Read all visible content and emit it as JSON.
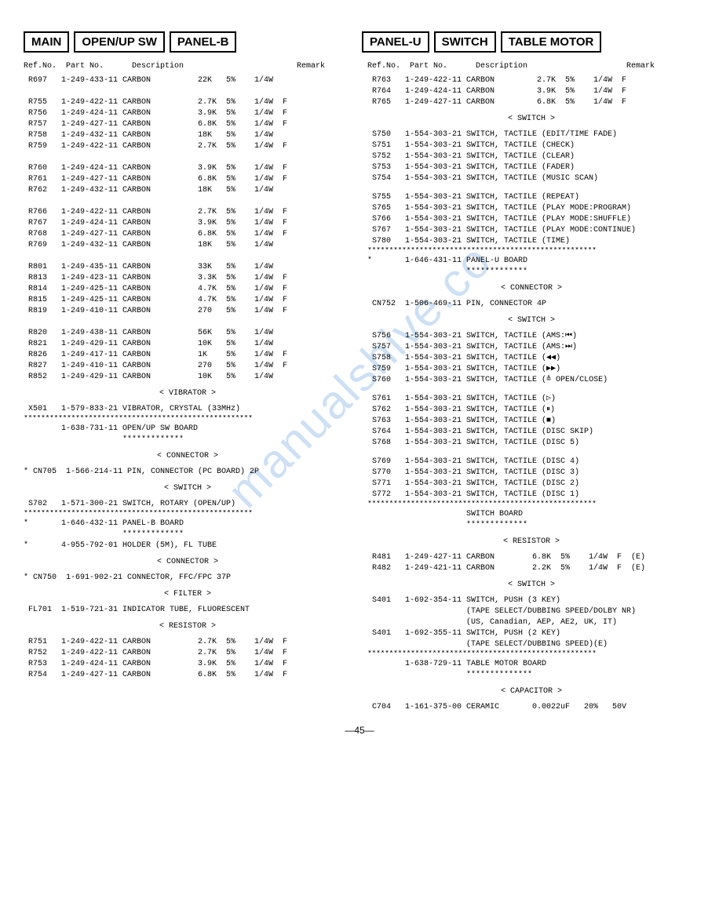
{
  "watermark": "manualshive.co",
  "page_number": "—45—",
  "headers_left": [
    "MAIN",
    "OPEN/UP SW",
    "PANEL-B"
  ],
  "headers_right": [
    "PANEL-U",
    "SWITCH",
    "TABLE MOTOR"
  ],
  "col_header_left": "Ref.No.  Part No.      Description                        Remark",
  "col_header_right": "Ref.No.  Part No.      Description                     Remark",
  "left_rows": [
    " R697   1-249-433-11 CARBON          22K   5%    1/4W",
    "",
    " R755   1-249-422-11 CARBON          2.7K  5%    1/4W  F",
    " R756   1-249-424-11 CARBON          3.9K  5%    1/4W  F",
    " R757   1-249-427-11 CARBON          6.8K  5%    1/4W  F",
    " R758   1-249-432-11 CARBON          18K   5%    1/4W",
    " R759   1-249-422-11 CARBON          2.7K  5%    1/4W  F",
    "",
    " R760   1-249-424-11 CARBON          3.9K  5%    1/4W  F",
    " R761   1-249-427-11 CARBON          6.8K  5%    1/4W  F",
    " R762   1-249-432-11 CARBON          18K   5%    1/4W",
    "",
    " R766   1-249-422-11 CARBON          2.7K  5%    1/4W  F",
    " R767   1-249-424-11 CARBON          3.9K  5%    1/4W  F",
    " R768   1-249-427-11 CARBON          6.8K  5%    1/4W  F",
    " R769   1-249-432-11 CARBON          18K   5%    1/4W",
    "",
    " R801   1-249-435-11 CARBON          33K   5%    1/4W",
    " R813   1-249-423-11 CARBON          3.3K  5%    1/4W  F",
    " R814   1-249-425-11 CARBON          4.7K  5%    1/4W  F",
    " R815   1-249-425-11 CARBON          4.7K  5%    1/4W  F",
    " R819   1-249-410-11 CARBON          270   5%    1/4W  F",
    "",
    " R820   1-249-438-11 CARBON          56K   5%    1/4W",
    " R821   1-249-429-11 CARBON          10K   5%    1/4W",
    " R826   1-249-417-11 CARBON          1K    5%    1/4W  F",
    " R827   1-249-410-11 CARBON          270   5%    1/4W  F",
    " R852   1-249-429-11 CARBON          10K   5%    1/4W"
  ],
  "left_sections": [
    {
      "label": "< VIBRATOR >"
    },
    {
      "text": " X501   1-579-833-21 VIBRATOR, CRYSTAL (33MHz)"
    },
    {
      "sep": true
    },
    {
      "text": "        1-638-731-11 OPEN/UP SW BOARD"
    },
    {
      "stars": "                     *************"
    },
    {
      "label": "< CONNECTOR >"
    },
    {
      "text": "* CN705  1-566-214-11 PIN, CONNECTOR (PC BOARD) 2P"
    },
    {
      "label": "< SWITCH >"
    },
    {
      "text": " S702   1-571-300-21 SWITCH, ROTARY (OPEN/UP)"
    },
    {
      "sep": true
    },
    {
      "text": "*       1-646-432-11 PANEL-B BOARD"
    },
    {
      "stars": "                     *************"
    },
    {
      "text": "*       4-955-792-01 HOLDER (5M), FL TUBE"
    },
    {
      "label": "< CONNECTOR >"
    },
    {
      "text": "* CN750  1-691-902-21 CONNECTOR, FFC/FPC 37P"
    },
    {
      "label": "< FILTER >"
    },
    {
      "text": " FL701  1-519-721-31 INDICATOR TUBE, FLUORESCENT"
    },
    {
      "label": "< RESISTOR >"
    },
    {
      "text": " R751   1-249-422-11 CARBON          2.7K  5%    1/4W  F"
    },
    {
      "text": " R752   1-249-422-11 CARBON          2.7K  5%    1/4W  F"
    },
    {
      "text": " R753   1-249-424-11 CARBON          3.9K  5%    1/4W  F"
    },
    {
      "text": " R754   1-249-427-11 CARBON          6.8K  5%    1/4W  F"
    }
  ],
  "right_rows": [
    " R763   1-249-422-11 CARBON         2.7K  5%    1/4W  F",
    " R764   1-249-424-11 CARBON         3.9K  5%    1/4W  F",
    " R765   1-249-427-11 CARBON         6.8K  5%    1/4W  F"
  ],
  "right_sections": [
    {
      "label": "< SWITCH >"
    },
    {
      "text": " S750   1-554-303-21 SWITCH, TACTILE (EDIT/TIME FADE)"
    },
    {
      "text": " S751   1-554-303-21 SWITCH, TACTILE (CHECK)"
    },
    {
      "text": " S752   1-554-303-21 SWITCH, TACTILE (CLEAR)"
    },
    {
      "text": " S753   1-554-303-21 SWITCH, TACTILE (FADER)"
    },
    {
      "text": " S754   1-554-303-21 SWITCH, TACTILE (MUSIC SCAN)"
    },
    {
      "gap": true
    },
    {
      "text": " S755   1-554-303-21 SWITCH, TACTILE (REPEAT)"
    },
    {
      "text": " S765   1-554-303-21 SWITCH, TACTILE (PLAY MODE:PROGRAM)"
    },
    {
      "text": " S766   1-554-303-21 SWITCH, TACTILE (PLAY MODE:SHUFFLE)"
    },
    {
      "text": " S767   1-554-303-21 SWITCH, TACTILE (PLAY MODE:CONTINUE)"
    },
    {
      "text": " S780   1-554-303-21 SWITCH, TACTILE (TIME)"
    },
    {
      "sep": true
    },
    {
      "text": "*       1-646-431-11 PANEL-U BOARD"
    },
    {
      "stars": "                     *************"
    },
    {
      "label": "< CONNECTOR >"
    },
    {
      "text": " CN752  1-506-469-11 PIN, CONNECTOR 4P"
    },
    {
      "label": "< SWITCH >"
    },
    {
      "text": " S756   1-554-303-21 SWITCH, TACTILE (AMS:⏮)"
    },
    {
      "text": " S757   1-554-303-21 SWITCH, TACTILE (AMS:⏭)"
    },
    {
      "text": " S758   1-554-303-21 SWITCH, TACTILE (◀◀)"
    },
    {
      "text": " S759   1-554-303-21 SWITCH, TACTILE (▶▶)"
    },
    {
      "text": " S760   1-554-303-21 SWITCH, TACTILE (≜ OPEN/CLOSE)"
    },
    {
      "gap": true
    },
    {
      "text": " S761   1-554-303-21 SWITCH, TACTILE (▷)"
    },
    {
      "text": " S762   1-554-303-21 SWITCH, TACTILE (⏸)"
    },
    {
      "text": " S763   1-554-303-21 SWITCH, TACTILE (■)"
    },
    {
      "text": " S764   1-554-303-21 SWITCH, TACTILE (DISC SKIP)"
    },
    {
      "text": " S768   1-554-303-21 SWITCH, TACTILE (DISC 5)"
    },
    {
      "gap": true
    },
    {
      "text": " S769   1-554-303-21 SWITCH, TACTILE (DISC 4)"
    },
    {
      "text": " S770   1-554-303-21 SWITCH, TACTILE (DISC 3)"
    },
    {
      "text": " S771   1-554-303-21 SWITCH, TACTILE (DISC 2)"
    },
    {
      "text": " S772   1-554-303-21 SWITCH, TACTILE (DISC 1)"
    },
    {
      "sep": true
    },
    {
      "text": "                     SWITCH BOARD"
    },
    {
      "stars": "                     *************"
    },
    {
      "label": "< RESISTOR >"
    },
    {
      "text": " R481   1-249-427-11 CARBON        6.8K  5%    1/4W  F  (E)"
    },
    {
      "text": " R482   1-249-421-11 CARBON        2.2K  5%    1/4W  F  (E)"
    },
    {
      "label": "< SWITCH >"
    },
    {
      "text": " S401   1-692-354-11 SWITCH, PUSH (3 KEY)"
    },
    {
      "text": "                     (TAPE SELECT/DUBBING SPEED/DOLBY NR)"
    },
    {
      "text": "                     (US, Canadian, AEP, AE2, UK, IT)"
    },
    {
      "text": " S401   1-692-355-11 SWITCH, PUSH (2 KEY)"
    },
    {
      "text": "                     (TAPE SELECT/DUBBING SPEED)(E)"
    },
    {
      "sep": true
    },
    {
      "text": "        1-638-729-11 TABLE MOTOR BOARD"
    },
    {
      "stars": "                     **************"
    },
    {
      "label": "< CAPACITOR >"
    },
    {
      "text": " C704   1-161-375-00 CERAMIC       0.0022uF   20%   50V"
    }
  ],
  "separator_line": "*****************************************************"
}
